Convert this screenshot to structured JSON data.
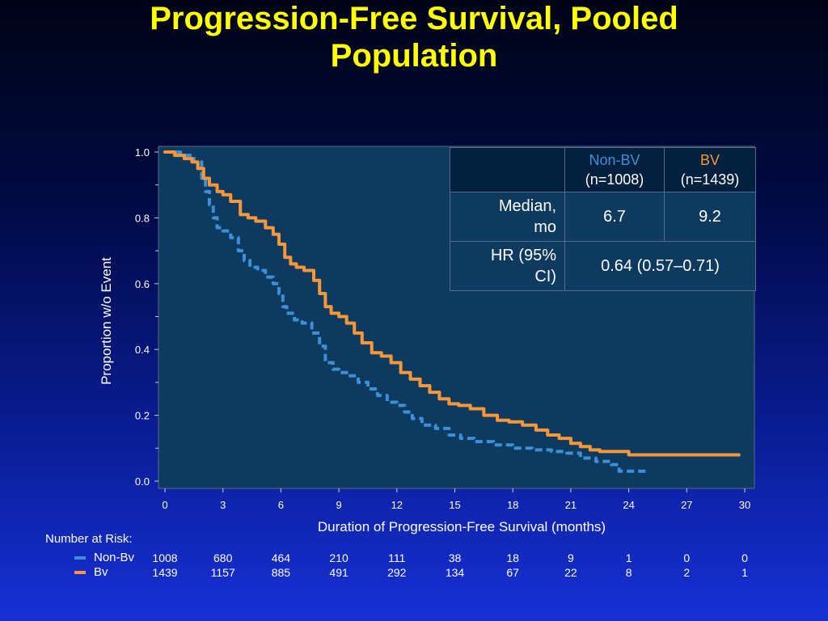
{
  "title_line1": "Progression-Free Survival, Pooled",
  "title_line2": "Population",
  "colors": {
    "nonbv": "#3d8fd8",
    "bv": "#f5973a",
    "plot_bg": "#0d3a5e",
    "title": "#ffff00"
  },
  "chart_data": {
    "type": "line",
    "xlabel": "Duration of Progression-Free Survival (months)",
    "ylabel": "Proportion w/o Event",
    "xlim": [
      0,
      30
    ],
    "ylim": [
      0,
      1
    ],
    "xticks": [
      0,
      3,
      6,
      9,
      12,
      15,
      18,
      21,
      24,
      27,
      30
    ],
    "yticks": [
      0.0,
      0.2,
      0.4,
      0.6,
      0.8,
      1.0
    ],
    "ytick_labels": [
      "0.0",
      "0.2",
      "0.4",
      "0.6",
      "0.8",
      "1.0"
    ],
    "series": [
      {
        "name": "Non-BV",
        "style": "dashed",
        "x": [
          0,
          0.8,
          1.5,
          1.9,
          2.1,
          2.3,
          2.5,
          2.7,
          3.0,
          3.4,
          3.8,
          4.1,
          4.4,
          4.8,
          5.2,
          5.6,
          5.9,
          6.1,
          6.3,
          6.7,
          7.1,
          7.6,
          8.0,
          8.3,
          8.7,
          9.0,
          9.5,
          10.0,
          10.5,
          11.0,
          11.5,
          12.0,
          12.4,
          12.8,
          13.3,
          14.0,
          14.7,
          15.3,
          16.0,
          17.0,
          18.0,
          19.0,
          20.0,
          20.8,
          21.5,
          22.3,
          22.7,
          23.1,
          23.5,
          24.0,
          24.5,
          25.0
        ],
        "y": [
          1.0,
          0.99,
          0.97,
          0.92,
          0.88,
          0.84,
          0.8,
          0.77,
          0.76,
          0.74,
          0.7,
          0.67,
          0.65,
          0.64,
          0.62,
          0.6,
          0.57,
          0.53,
          0.51,
          0.49,
          0.48,
          0.45,
          0.41,
          0.36,
          0.34,
          0.33,
          0.32,
          0.3,
          0.28,
          0.26,
          0.24,
          0.23,
          0.21,
          0.19,
          0.17,
          0.16,
          0.14,
          0.13,
          0.12,
          0.11,
          0.1,
          0.095,
          0.09,
          0.085,
          0.07,
          0.06,
          0.06,
          0.05,
          0.03,
          0.03,
          0.03,
          0.03
        ]
      },
      {
        "name": "BV",
        "style": "solid",
        "x": [
          0,
          0.5,
          1.0,
          1.4,
          1.7,
          2.0,
          2.3,
          2.7,
          3.0,
          3.4,
          3.9,
          4.3,
          4.7,
          5.2,
          5.6,
          5.9,
          6.2,
          6.5,
          6.8,
          7.2,
          7.7,
          8.0,
          8.3,
          8.6,
          9.0,
          9.4,
          9.8,
          10.2,
          10.7,
          11.2,
          11.7,
          12.2,
          12.7,
          13.2,
          13.7,
          14.2,
          14.7,
          15.2,
          15.8,
          16.5,
          17.2,
          17.8,
          18.5,
          19.2,
          19.8,
          20.4,
          21.0,
          21.5,
          22.0,
          22.5,
          23.0,
          24.0,
          25.0,
          26.0,
          27.0,
          28.0,
          29.0,
          29.7
        ],
        "y": [
          1.0,
          0.99,
          0.98,
          0.97,
          0.95,
          0.92,
          0.9,
          0.88,
          0.87,
          0.85,
          0.81,
          0.8,
          0.79,
          0.77,
          0.75,
          0.72,
          0.68,
          0.66,
          0.65,
          0.64,
          0.61,
          0.57,
          0.53,
          0.51,
          0.5,
          0.48,
          0.45,
          0.42,
          0.39,
          0.38,
          0.36,
          0.33,
          0.31,
          0.29,
          0.27,
          0.25,
          0.235,
          0.23,
          0.22,
          0.2,
          0.185,
          0.18,
          0.17,
          0.155,
          0.14,
          0.13,
          0.115,
          0.105,
          0.095,
          0.09,
          0.09,
          0.08,
          0.08,
          0.08,
          0.08,
          0.08,
          0.08,
          0.08
        ]
      }
    ]
  },
  "table": {
    "col1_name": "Non-BV",
    "col1_n": "(n=1008)",
    "col2_name": "BV",
    "col2_n": "(n=1439)",
    "row1_label_a": "Median,",
    "row1_label_b": "mo",
    "row1_val1": "6.7",
    "row1_val2": "9.2",
    "row2_label_a": "HR (95%",
    "row2_label_b": "CI)",
    "row2_val": "0.64 (0.57–0.71)"
  },
  "risk": {
    "title": "Number at Risk:",
    "nonbv_label": "Non-Bv",
    "bv_label": "Bv",
    "nonbv": [
      "1008",
      "680",
      "464",
      "210",
      "111",
      "38",
      "18",
      "9",
      "1",
      "0",
      "0"
    ],
    "bv": [
      "1439",
      "1157",
      "885",
      "491",
      "292",
      "134",
      "67",
      "22",
      "8",
      "2",
      "1"
    ]
  }
}
